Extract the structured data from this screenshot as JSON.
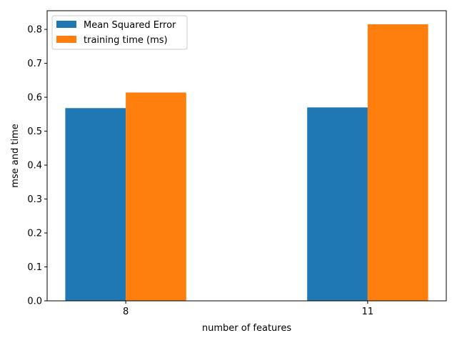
{
  "chart_data": {
    "type": "bar",
    "categories": [
      "8",
      "11"
    ],
    "series": [
      {
        "name": "Mean Squared Error",
        "values": [
          0.568,
          0.57
        ],
        "color": "#1f77b4"
      },
      {
        "name": "training time (ms)",
        "values": [
          0.614,
          0.815
        ],
        "color": "#ff7f0e"
      }
    ],
    "xlabel": "number of features",
    "ylabel": "mse and time",
    "ylim": [
      0,
      0.855
    ],
    "yticks": [
      0.0,
      0.1,
      0.2,
      0.3,
      0.4,
      0.5,
      0.6,
      0.7,
      0.8
    ],
    "ytick_labels": [
      "0.0",
      "0.1",
      "0.2",
      "0.3",
      "0.4",
      "0.5",
      "0.6",
      "0.7",
      "0.8"
    ],
    "grid": false,
    "legend_position": "top-left"
  }
}
